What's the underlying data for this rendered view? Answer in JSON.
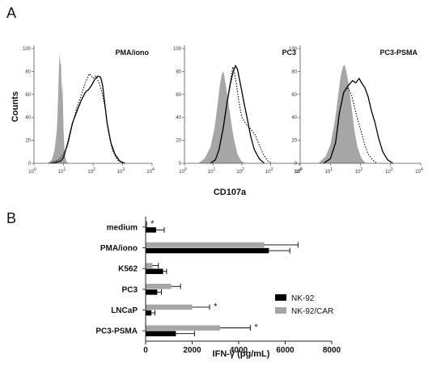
{
  "figure": {
    "panel_a_label": "A",
    "panel_b_label": "B"
  },
  "chart_data": [
    {
      "type": "line",
      "panel": "A",
      "shared_ylabel": "Counts",
      "shared_xlabel": "CD107a",
      "x_scale": "log",
      "xlim": [
        1,
        10000
      ],
      "ylim": [
        0,
        100
      ],
      "x_ticks": [
        {
          "base": "10",
          "exp": "0",
          "value": 1
        },
        {
          "base": "10",
          "exp": "1",
          "value": 10
        },
        {
          "base": "10",
          "exp": "2",
          "value": 100
        },
        {
          "base": "10",
          "exp": "3",
          "value": 1000
        },
        {
          "base": "10",
          "exp": "4",
          "value": 10000
        }
      ],
      "y_ticks": [
        "0",
        "20",
        "40",
        "60",
        "80",
        "100"
      ],
      "series_styles": {
        "control": {
          "fill": "#a6a6a6",
          "note": "filled grey histogram"
        },
        "car": {
          "stroke": "#000000",
          "dash": "none"
        },
        "parental": {
          "stroke": "#000000",
          "dash": "dotted"
        }
      },
      "histograms": [
        {
          "title": "PMA/iono",
          "control": [
            [
              3,
              0
            ],
            [
              4,
              3
            ],
            [
              5,
              12
            ],
            [
              6,
              30
            ],
            [
              6.5,
              55
            ],
            [
              7,
              82
            ],
            [
              7.4,
              96
            ],
            [
              7.8,
              88
            ],
            [
              8.3,
              85
            ],
            [
              8.7,
              60
            ],
            [
              9.2,
              72
            ],
            [
              10,
              30
            ],
            [
              11,
              8
            ],
            [
              12.5,
              2
            ],
            [
              14,
              0
            ]
          ],
          "car": [
            [
              4,
              0
            ],
            [
              8,
              2
            ],
            [
              10,
              5
            ],
            [
              14,
              18
            ],
            [
              20,
              35
            ],
            [
              30,
              47
            ],
            [
              40,
              55
            ],
            [
              55,
              62
            ],
            [
              70,
              64
            ],
            [
              90,
              68
            ],
            [
              120,
              74
            ],
            [
              150,
              76
            ],
            [
              180,
              75
            ],
            [
              210,
              68
            ],
            [
              250,
              52
            ],
            [
              300,
              35
            ],
            [
              400,
              18
            ],
            [
              550,
              8
            ],
            [
              800,
              2
            ],
            [
              1200,
              0
            ]
          ],
          "parental": [
            [
              3,
              0
            ],
            [
              7,
              3
            ],
            [
              10,
              8
            ],
            [
              14,
              16
            ],
            [
              20,
              34
            ],
            [
              28,
              48
            ],
            [
              38,
              58
            ],
            [
              55,
              70
            ],
            [
              75,
              78
            ],
            [
              100,
              74
            ],
            [
              125,
              76
            ],
            [
              160,
              70
            ],
            [
              200,
              62
            ],
            [
              260,
              48
            ],
            [
              330,
              28
            ],
            [
              450,
              12
            ],
            [
              650,
              3
            ],
            [
              1000,
              0
            ]
          ]
        },
        {
          "title": "PC3",
          "control": [
            [
              3,
              0
            ],
            [
              5,
              4
            ],
            [
              8,
              14
            ],
            [
              11,
              30
            ],
            [
              14,
              50
            ],
            [
              17,
              68
            ],
            [
              20,
              78
            ],
            [
              23,
              80
            ],
            [
              26,
              72
            ],
            [
              32,
              58
            ],
            [
              40,
              40
            ],
            [
              52,
              22
            ],
            [
              70,
              8
            ],
            [
              95,
              2
            ],
            [
              130,
              0
            ]
          ],
          "car": [
            [
              8,
              0
            ],
            [
              12,
              3
            ],
            [
              16,
              12
            ],
            [
              22,
              30
            ],
            [
              30,
              52
            ],
            [
              40,
              70
            ],
            [
              50,
              80
            ],
            [
              60,
              85
            ],
            [
              70,
              82
            ],
            [
              90,
              68
            ],
            [
              120,
              52
            ],
            [
              150,
              40
            ],
            [
              200,
              24
            ],
            [
              270,
              12
            ],
            [
              400,
              4
            ],
            [
              600,
              0
            ]
          ],
          "parental": [
            [
              8,
              0
            ],
            [
              12,
              3
            ],
            [
              16,
              12
            ],
            [
              22,
              30
            ],
            [
              30,
              52
            ],
            [
              40,
              72
            ],
            [
              48,
              84
            ],
            [
              55,
              79
            ],
            [
              65,
              68
            ],
            [
              80,
              52
            ],
            [
              100,
              40
            ],
            [
              140,
              34
            ],
            [
              200,
              30
            ],
            [
              300,
              24
            ],
            [
              400,
              16
            ],
            [
              550,
              8
            ],
            [
              800,
              2
            ],
            [
              1100,
              0
            ]
          ]
        },
        {
          "title": "PC3-PSMA",
          "control": [
            [
              4,
              0
            ],
            [
              7,
              6
            ],
            [
              10,
              16
            ],
            [
              14,
              36
            ],
            [
              18,
              58
            ],
            [
              22,
              76
            ],
            [
              26,
              84
            ],
            [
              30,
              86
            ],
            [
              34,
              80
            ],
            [
              40,
              70
            ],
            [
              50,
              50
            ],
            [
              62,
              30
            ],
            [
              80,
              14
            ],
            [
              110,
              4
            ],
            [
              150,
              0
            ]
          ],
          "car": [
            [
              6,
              0
            ],
            [
              10,
              4
            ],
            [
              15,
              18
            ],
            [
              20,
              44
            ],
            [
              28,
              62
            ],
            [
              40,
              68
            ],
            [
              55,
              72
            ],
            [
              70,
              70
            ],
            [
              90,
              74
            ],
            [
              110,
              70
            ],
            [
              140,
              66
            ],
            [
              180,
              58
            ],
            [
              230,
              46
            ],
            [
              300,
              36
            ],
            [
              400,
              22
            ],
            [
              550,
              10
            ],
            [
              800,
              3
            ],
            [
              1200,
              0
            ]
          ],
          "parental": [
            [
              6,
              0
            ],
            [
              10,
              4
            ],
            [
              15,
              18
            ],
            [
              20,
              44
            ],
            [
              28,
              62
            ],
            [
              38,
              66
            ],
            [
              50,
              60
            ],
            [
              65,
              48
            ],
            [
              85,
              36
            ],
            [
              110,
              26
            ],
            [
              140,
              16
            ],
            [
              180,
              8
            ],
            [
              250,
              3
            ],
            [
              350,
              0
            ]
          ]
        }
      ]
    },
    {
      "type": "bar",
      "panel": "B",
      "orientation": "horizontal",
      "xlabel": "IFN-γ (pg/mL)",
      "ylabel": "",
      "xlim": [
        0,
        8000
      ],
      "x_ticks": [
        "0",
        "2000",
        "4000",
        "6000",
        "8000"
      ],
      "categories": [
        "medium",
        "PMA/iono",
        "K562",
        "PC3",
        "LNCaP",
        "PC3-PSMA"
      ],
      "series": [
        {
          "name": "NK-92",
          "color": "#000000",
          "values": [
            450,
            5300,
            750,
            500,
            250,
            1300
          ],
          "errors": [
            350,
            900,
            150,
            180,
            150,
            800
          ]
        },
        {
          "name": "NK-92/CAR",
          "color": "#a6a6a6",
          "values": [
            20,
            5100,
            300,
            1100,
            2000,
            3200
          ],
          "errors": [
            20,
            1450,
            250,
            400,
            750,
            1300
          ]
        }
      ],
      "annotations": [
        {
          "category": "medium",
          "text": "*"
        },
        {
          "category": "LNCaP",
          "text": "*"
        },
        {
          "category": "PC3-PSMA",
          "text": "*"
        }
      ],
      "legend_position": "right"
    }
  ]
}
